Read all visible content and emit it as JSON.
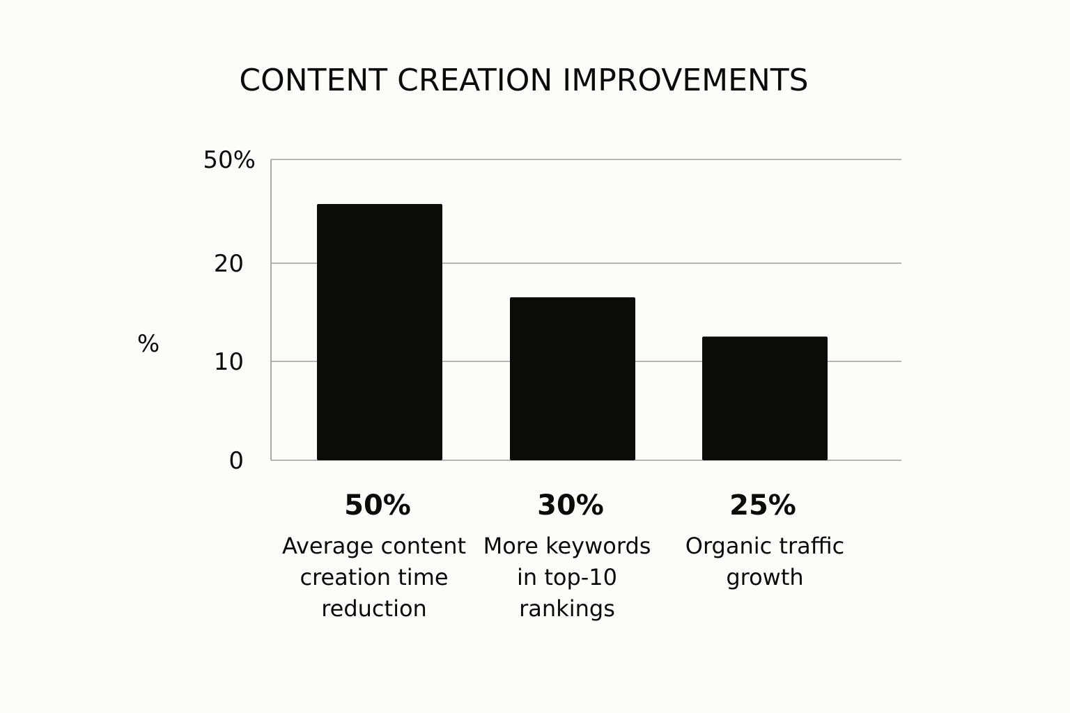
{
  "chart_data": {
    "type": "bar",
    "title": "CONTENT CREATION IMPROVEMENTS",
    "ylabel": "%",
    "xlabel": "",
    "y_ticks": [
      {
        "value": 0,
        "label": "0"
      },
      {
        "value": 10,
        "label": "10"
      },
      {
        "value": 20,
        "label": "20"
      },
      {
        "value": 50,
        "label": "50%"
      }
    ],
    "y_axis_note": "tick labels are non-linear; bars drawn against the printed tick positions",
    "categories": [
      [
        "Average content",
        "creation time",
        "reduction"
      ],
      [
        "More keywords",
        "in top-10",
        "rankings"
      ],
      [
        "Organic traffic",
        "growth"
      ]
    ],
    "values": [
      50,
      30,
      25
    ],
    "value_labels": [
      "50%",
      "30%",
      "25%"
    ],
    "bar_heights_on_axis": [
      26.1,
      16.6,
      12.6
    ],
    "grid": true,
    "legend": "none",
    "colors": {
      "bar": "#0b0b08",
      "grid": "#b4b4b4",
      "background": "#fcfcfa"
    }
  }
}
